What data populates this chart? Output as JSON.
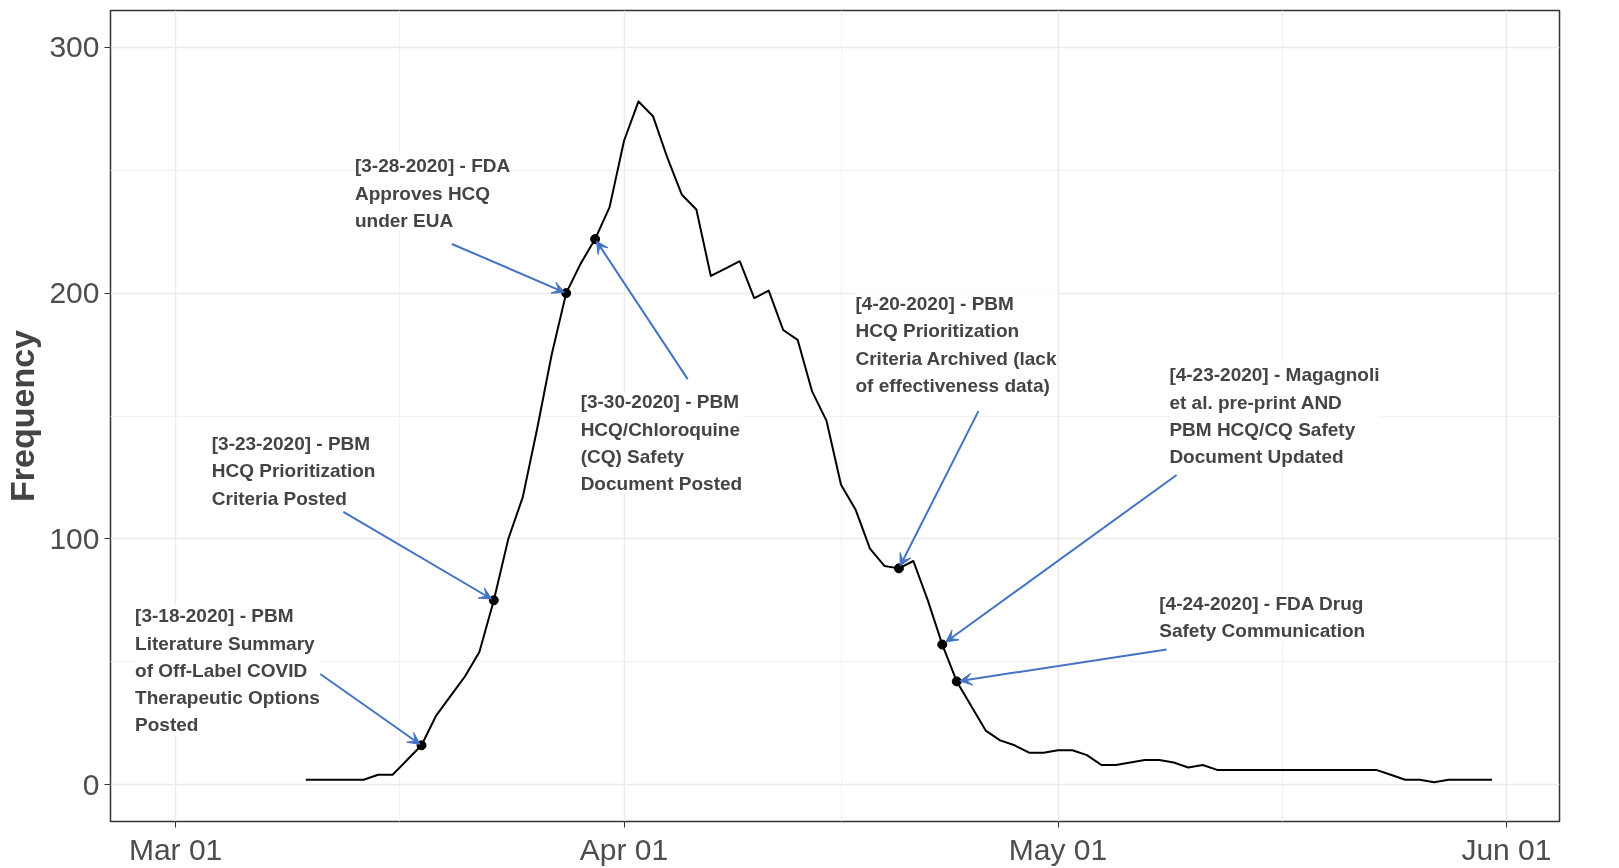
{
  "chart_data": {
    "type": "line",
    "ylabel": "Frequency",
    "x": [
      "2020-03-10",
      "2020-03-11",
      "2020-03-12",
      "2020-03-13",
      "2020-03-14",
      "2020-03-15",
      "2020-03-16",
      "2020-03-17",
      "2020-03-18",
      "2020-03-19",
      "2020-03-20",
      "2020-03-21",
      "2020-03-22",
      "2020-03-23",
      "2020-03-24",
      "2020-03-25",
      "2020-03-26",
      "2020-03-27",
      "2020-03-28",
      "2020-03-29",
      "2020-03-30",
      "2020-03-31",
      "2020-04-01",
      "2020-04-02",
      "2020-04-03",
      "2020-04-04",
      "2020-04-05",
      "2020-04-06",
      "2020-04-07",
      "2020-04-08",
      "2020-04-09",
      "2020-04-10",
      "2020-04-11",
      "2020-04-12",
      "2020-04-13",
      "2020-04-14",
      "2020-04-15",
      "2020-04-16",
      "2020-04-17",
      "2020-04-18",
      "2020-04-19",
      "2020-04-20",
      "2020-04-21",
      "2020-04-22",
      "2020-04-23",
      "2020-04-24",
      "2020-04-25",
      "2020-04-26",
      "2020-04-27",
      "2020-04-28",
      "2020-04-29",
      "2020-04-30",
      "2020-05-01",
      "2020-05-02",
      "2020-05-03",
      "2020-05-04",
      "2020-05-05",
      "2020-05-06",
      "2020-05-07",
      "2020-05-08",
      "2020-05-09",
      "2020-05-10",
      "2020-05-11",
      "2020-05-12",
      "2020-05-13",
      "2020-05-14",
      "2020-05-15",
      "2020-05-16",
      "2020-05-17",
      "2020-05-18",
      "2020-05-19",
      "2020-05-20",
      "2020-05-21",
      "2020-05-22",
      "2020-05-23",
      "2020-05-24",
      "2020-05-25",
      "2020-05-26",
      "2020-05-27",
      "2020-05-28",
      "2020-05-29",
      "2020-05-30",
      "2020-05-31"
    ],
    "series": [
      {
        "color": "#000000",
        "values": [
          2,
          2,
          2,
          2,
          2,
          4,
          4,
          10,
          16,
          28,
          36,
          44,
          54,
          75,
          100,
          117,
          145,
          175,
          200,
          212,
          222,
          235,
          262,
          278,
          272,
          255,
          240,
          234,
          207,
          210,
          213,
          198,
          201,
          185,
          181,
          160,
          148,
          122,
          112,
          96,
          89,
          88,
          91,
          75,
          57,
          42,
          32,
          22,
          18,
          16,
          13,
          13,
          14,
          14,
          12,
          8,
          8,
          9,
          10,
          10,
          9,
          7,
          8,
          6,
          6,
          6,
          6,
          6,
          6,
          6,
          6,
          6,
          6,
          6,
          6,
          4,
          2,
          2,
          1,
          2,
          2,
          2,
          2
        ]
      },
      {
        "type": "scatter",
        "color": "#000000",
        "marker": "circle",
        "x": [
          "2020-03-18",
          "2020-03-23",
          "2020-03-28",
          "2020-03-30",
          "2020-04-20",
          "2020-04-23",
          "2020-04-24"
        ],
        "values": [
          16,
          75,
          200,
          222,
          88,
          57,
          42
        ]
      }
    ],
    "annotations": [
      {
        "text": "[3-18-2020] - PBM\nLiterature Summary\nof Off-Label COVID\nTherapeutic Options\nPosted",
        "x": "2020-03-18",
        "y": 16
      },
      {
        "text": "[3-23-2020] - PBM\nHCQ Prioritization\nCriteria Posted",
        "x": "2020-03-23",
        "y": 75
      },
      {
        "text": "[3-28-2020] - FDA\nApproves HCQ\nunder EUA",
        "x": "2020-03-28",
        "y": 200
      },
      {
        "text": "[3-30-2020] - PBM\nHCQ/Chloroquine\n(CQ) Safety\nDocument Posted",
        "x": "2020-03-30",
        "y": 222
      },
      {
        "text": "[4-20-2020] - PBM\nHCQ Prioritization\nCriteria Archived (lack\nof effectiveness data)",
        "x": "2020-04-20",
        "y": 88
      },
      {
        "text": "[4-23-2020] - Magagnoli\net al. pre-print AND\nPBM HCQ/CQ Safety\nDocument Updated",
        "x": "2020-04-23",
        "y": 57
      },
      {
        "text": "[4-24-2020] - FDA Drug\nSafety Communication",
        "x": "2020-04-24",
        "y": 42
      }
    ],
    "xlim": [
      "2020-02-25T12:00",
      "2020-06-04T16:00"
    ],
    "xticks": [
      {
        "value": "2020-03-01",
        "label": "Mar 01"
      },
      {
        "value": "2020-04-01",
        "label": "Apr 01"
      },
      {
        "value": "2020-05-01",
        "label": "May 01"
      },
      {
        "value": "2020-06-01",
        "label": "Jun 01"
      }
    ],
    "ylim": [
      -15,
      315
    ],
    "yticks": [
      0,
      100,
      200,
      300
    ],
    "grid": true
  }
}
